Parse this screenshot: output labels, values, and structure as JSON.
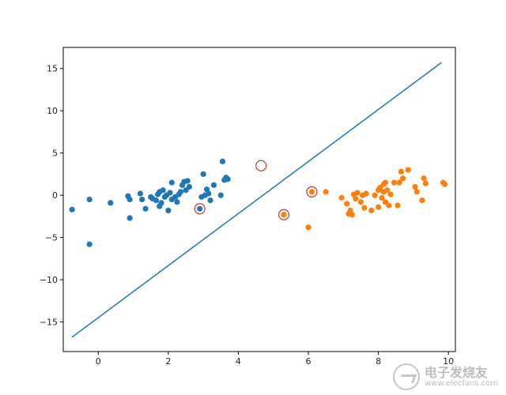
{
  "chart_data": {
    "type": "scatter",
    "xlim": [
      -1.0,
      10.2
    ],
    "ylim": [
      -18.5,
      17.5
    ],
    "xticks": [
      0,
      2,
      4,
      6,
      8,
      10
    ],
    "yticks": [
      -15,
      -10,
      -5,
      0,
      5,
      10,
      15
    ],
    "grid": false,
    "series": [
      {
        "color": "#1f77b4",
        "points": [
          [
            -0.75,
            -1.7
          ],
          [
            -0.25,
            -0.5
          ],
          [
            -0.25,
            -5.8
          ],
          [
            0.35,
            -0.9
          ],
          [
            0.85,
            -0.1
          ],
          [
            0.9,
            -0.5
          ],
          [
            0.9,
            -2.7
          ],
          [
            1.2,
            0.2
          ],
          [
            1.25,
            -0.5
          ],
          [
            1.35,
            -1.6
          ],
          [
            1.5,
            -0.2
          ],
          [
            1.55,
            -0.4
          ],
          [
            1.65,
            -0.6
          ],
          [
            1.7,
            0.1
          ],
          [
            1.75,
            0.4
          ],
          [
            1.75,
            -1.3
          ],
          [
            1.8,
            -0.9
          ],
          [
            1.85,
            0.6
          ],
          [
            1.9,
            -0.2
          ],
          [
            1.95,
            0.0
          ],
          [
            2.0,
            -1.8
          ],
          [
            2.05,
            0.3
          ],
          [
            2.1,
            -0.5
          ],
          [
            2.1,
            1.5
          ],
          [
            2.2,
            -0.2
          ],
          [
            2.25,
            -0.8
          ],
          [
            2.3,
            0.1
          ],
          [
            2.35,
            0.4
          ],
          [
            2.4,
            1.2
          ],
          [
            2.45,
            1.6
          ],
          [
            2.5,
            0.6
          ],
          [
            2.55,
            1.7
          ],
          [
            2.6,
            1.0
          ],
          [
            2.9,
            -1.6
          ],
          [
            2.95,
            -0.2
          ],
          [
            3.0,
            2.5
          ],
          [
            3.05,
            0.0
          ],
          [
            3.1,
            0.7
          ],
          [
            3.15,
            0.2
          ],
          [
            3.2,
            -0.6
          ],
          [
            3.3,
            1.2
          ],
          [
            3.5,
            0.0
          ],
          [
            3.55,
            4.0
          ],
          [
            3.6,
            1.8
          ],
          [
            3.65,
            2.1
          ],
          [
            3.7,
            1.9
          ]
        ]
      },
      {
        "color": "#ff7f0e",
        "points": [
          [
            5.3,
            -2.3
          ],
          [
            6.0,
            -3.8
          ],
          [
            6.1,
            0.4
          ],
          [
            6.5,
            0.4
          ],
          [
            6.95,
            -0.3
          ],
          [
            7.1,
            -1.0
          ],
          [
            7.15,
            -2.2
          ],
          [
            7.2,
            -1.8
          ],
          [
            7.25,
            -2.3
          ],
          [
            7.3,
            0.1
          ],
          [
            7.35,
            -0.4
          ],
          [
            7.4,
            0.3
          ],
          [
            7.5,
            -0.8
          ],
          [
            7.55,
            0.0
          ],
          [
            7.6,
            -1.5
          ],
          [
            7.65,
            0.2
          ],
          [
            7.8,
            -1.8
          ],
          [
            7.9,
            0.0
          ],
          [
            8.0,
            0.6
          ],
          [
            8.0,
            -1.4
          ],
          [
            8.05,
            0.9
          ],
          [
            8.1,
            -0.3
          ],
          [
            8.15,
            0.4
          ],
          [
            8.15,
            1.3
          ],
          [
            8.2,
            -0.8
          ],
          [
            8.2,
            1.5
          ],
          [
            8.25,
            0.6
          ],
          [
            8.3,
            -1.2
          ],
          [
            8.35,
            0.1
          ],
          [
            8.45,
            1.5
          ],
          [
            8.55,
            -1.2
          ],
          [
            8.6,
            1.5
          ],
          [
            8.65,
            2.8
          ],
          [
            8.7,
            2.0
          ],
          [
            8.85,
            3.0
          ],
          [
            9.05,
            1.0
          ],
          [
            9.1,
            0.4
          ],
          [
            9.25,
            -0.6
          ],
          [
            9.3,
            2.0
          ],
          [
            9.35,
            1.4
          ],
          [
            9.85,
            1.5
          ],
          [
            9.9,
            1.3
          ]
        ]
      }
    ],
    "support_vectors": [
      [
        2.9,
        -1.6
      ],
      [
        4.65,
        3.5
      ],
      [
        5.3,
        -2.3
      ],
      [
        6.1,
        0.4
      ]
    ],
    "support_vector_edge_color": "#c0392b",
    "decision_line": {
      "x": [
        -0.75,
        9.8
      ],
      "y": [
        -16.8,
        15.7
      ],
      "color": "#1f77b4"
    }
  },
  "watermark": {
    "icon": "electronic-enthusiast-logo-icon",
    "text": "电子发烧友",
    "url": "www.elecfans.com"
  }
}
